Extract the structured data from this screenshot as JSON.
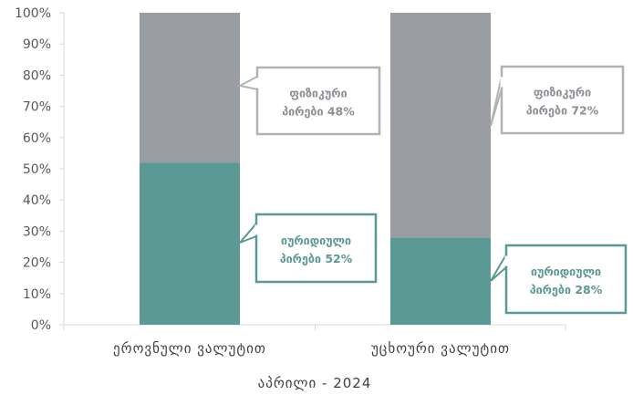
{
  "chart_data": {
    "type": "bar",
    "stacked": true,
    "y_unit": "percent",
    "ylim": [
      0,
      100
    ],
    "y_ticks": [
      "0%",
      "10%",
      "20%",
      "30%",
      "40%",
      "50%",
      "60%",
      "70%",
      "80%",
      "90%",
      "100%"
    ],
    "categories": [
      "ეროვნული ვალუტით",
      "უცხოური ვალუტით"
    ],
    "xlabel": "აპრილი - 2024",
    "grid": false,
    "legend": "none",
    "series": [
      {
        "key": "legal",
        "values": [
          52,
          28
        ],
        "color": "#5b9994",
        "callouts": [
          [
            "იურიდიული",
            "პირები 52%"
          ],
          [
            "იურიდიული",
            "პირები 28%"
          ]
        ]
      },
      {
        "key": "physical",
        "values": [
          48,
          72
        ],
        "color": "#999da1",
        "callouts": [
          [
            "ფიზიკური",
            "პირები 48%"
          ],
          [
            "ფიზიკური",
            "პირები 72%"
          ]
        ]
      }
    ]
  }
}
